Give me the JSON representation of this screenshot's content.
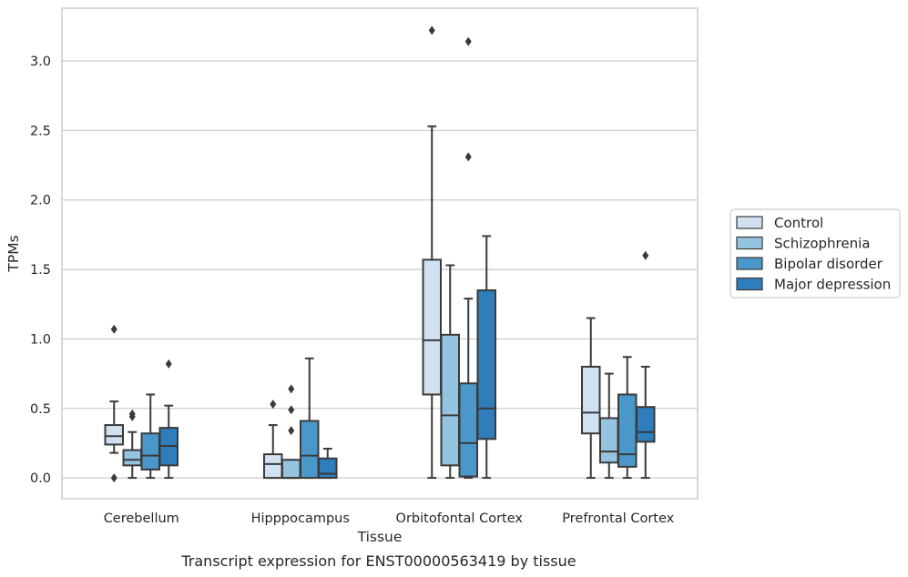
{
  "caption": "Transcript expression for ENST00000563419 by tissue",
  "chart_data": {
    "type": "boxplot",
    "xlabel": "Tissue",
    "ylabel": "TPMs",
    "ylim": [
      -0.15,
      3.38
    ],
    "yticks": [
      0.0,
      0.5,
      1.0,
      1.5,
      2.0,
      2.5,
      3.0
    ],
    "ytick_labels": [
      "0.0",
      "0.5",
      "1.0",
      "1.5",
      "2.0",
      "2.5",
      "3.0"
    ],
    "grid": "horizontal",
    "legend_position": "right",
    "categories": [
      "Cerebellum",
      "Hipppocampus",
      "Orbitofontal Cortex",
      "Prefrontal Cortex"
    ],
    "series": [
      {
        "name": "Control",
        "color": "#d0e1f2",
        "boxes": [
          {
            "whislo": 0.18,
            "q1": 0.24,
            "med": 0.3,
            "q3": 0.38,
            "whishi": 0.55,
            "fliers": [
              1.07,
              0.0
            ]
          },
          {
            "whislo": 0.0,
            "q1": 0.0,
            "med": 0.1,
            "q3": 0.17,
            "whishi": 0.38,
            "fliers": [
              0.53
            ]
          },
          {
            "whislo": 0.0,
            "q1": 0.6,
            "med": 0.99,
            "q3": 1.57,
            "whishi": 2.53,
            "fliers": [
              3.22
            ]
          },
          {
            "whislo": 0.0,
            "q1": 0.32,
            "med": 0.47,
            "q3": 0.8,
            "whishi": 1.15,
            "fliers": []
          }
        ]
      },
      {
        "name": "Schizophrenia",
        "color": "#94c4df",
        "boxes": [
          {
            "whislo": 0.0,
            "q1": 0.09,
            "med": 0.13,
            "q3": 0.2,
            "whishi": 0.33,
            "fliers": [
              0.46,
              0.44
            ]
          },
          {
            "whislo": 0.0,
            "q1": 0.0,
            "med": 0.0,
            "q3": 0.13,
            "whishi": 0.13,
            "fliers": [
              0.64,
              0.49,
              0.34
            ]
          },
          {
            "whislo": 0.0,
            "q1": 0.09,
            "med": 0.45,
            "q3": 1.03,
            "whishi": 1.53,
            "fliers": []
          },
          {
            "whislo": 0.0,
            "q1": 0.11,
            "med": 0.19,
            "q3": 0.43,
            "whishi": 0.75,
            "fliers": []
          }
        ]
      },
      {
        "name": "Bipolar disorder",
        "color": "#4a98c9",
        "boxes": [
          {
            "whislo": 0.0,
            "q1": 0.06,
            "med": 0.16,
            "q3": 0.32,
            "whishi": 0.6,
            "fliers": []
          },
          {
            "whislo": 0.0,
            "q1": 0.0,
            "med": 0.16,
            "q3": 0.41,
            "whishi": 0.86,
            "fliers": []
          },
          {
            "whislo": 0.0,
            "q1": 0.01,
            "med": 0.25,
            "q3": 0.68,
            "whishi": 1.29,
            "fliers": [
              3.14,
              2.31
            ]
          },
          {
            "whislo": 0.0,
            "q1": 0.08,
            "med": 0.17,
            "q3": 0.6,
            "whishi": 0.87,
            "fliers": []
          }
        ]
      },
      {
        "name": "Major depression",
        "color": "#2e7ebc",
        "boxes": [
          {
            "whislo": 0.0,
            "q1": 0.09,
            "med": 0.23,
            "q3": 0.36,
            "whishi": 0.52,
            "fliers": [
              0.82
            ]
          },
          {
            "whislo": 0.0,
            "q1": 0.0,
            "med": 0.03,
            "q3": 0.14,
            "whishi": 0.21,
            "fliers": []
          },
          {
            "whislo": 0.0,
            "q1": 0.28,
            "med": 0.5,
            "q3": 1.35,
            "whishi": 1.74,
            "fliers": []
          },
          {
            "whislo": 0.0,
            "q1": 0.26,
            "med": 0.33,
            "q3": 0.51,
            "whishi": 0.8,
            "fliers": [
              1.6
            ]
          }
        ]
      }
    ],
    "style": {
      "line_color": "#3a3a3a",
      "grid_color": "#cccccc",
      "frame_color": "#cccccc"
    }
  }
}
